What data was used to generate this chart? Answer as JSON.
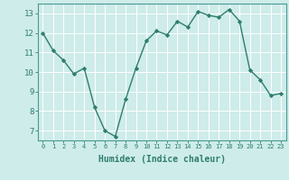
{
  "x": [
    0,
    1,
    2,
    3,
    4,
    5,
    6,
    7,
    8,
    9,
    10,
    11,
    12,
    13,
    14,
    15,
    16,
    17,
    18,
    19,
    20,
    21,
    22,
    23
  ],
  "y": [
    12.0,
    11.1,
    10.6,
    9.9,
    10.2,
    8.2,
    7.0,
    6.7,
    8.6,
    10.2,
    11.6,
    12.1,
    11.9,
    12.6,
    12.3,
    13.1,
    12.9,
    12.8,
    13.2,
    12.6,
    10.1,
    9.6,
    8.8,
    8.9
  ],
  "xlabel": "Humidex (Indice chaleur)",
  "xlim": [
    -0.5,
    23.5
  ],
  "ylim": [
    6.5,
    13.5
  ],
  "yticks": [
    7,
    8,
    9,
    10,
    11,
    12,
    13
  ],
  "xticks": [
    0,
    1,
    2,
    3,
    4,
    5,
    6,
    7,
    8,
    9,
    10,
    11,
    12,
    13,
    14,
    15,
    16,
    17,
    18,
    19,
    20,
    21,
    22,
    23
  ],
  "line_color": "#2e7d6e",
  "marker": "D",
  "marker_size": 2.2,
  "bg_color": "#ceecea",
  "grid_color": "#ffffff",
  "axis_color": "#4a9a90",
  "tick_color": "#2e7d6e",
  "label_color": "#2e7d6e",
  "font_family": "monospace",
  "xlabel_fontsize": 7.0,
  "tick_fontsize_x": 5.0,
  "tick_fontsize_y": 6.5
}
